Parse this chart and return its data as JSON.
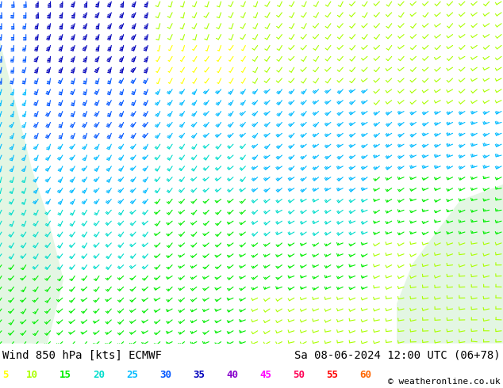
{
  "title_left": "Wind 850 hPa [kts] ECMWF",
  "title_right": "Sa 08-06-2024 12:00 UTC (06+78)",
  "copyright": "© weatheronline.co.uk",
  "legend_values": [
    5,
    10,
    15,
    20,
    25,
    30,
    35,
    40,
    45,
    50,
    55,
    60
  ],
  "legend_colors": [
    "#ffff00",
    "#aaff00",
    "#00ee00",
    "#00ddcc",
    "#00bbff",
    "#0055ff",
    "#0000bb",
    "#8800cc",
    "#ff00ff",
    "#ff0055",
    "#ff0000",
    "#ff6600"
  ],
  "bg_color": "#f0f0f0",
  "label_bg": "#ffffff",
  "font_size_title": 10,
  "font_size_legend": 9,
  "map_bg": "#f0f0f0",
  "land_green": "#d8f0d0",
  "speed_colors": {
    "5": "#ffff00",
    "10": "#aaff00",
    "15": "#00ee00",
    "20": "#00ddcc",
    "25": "#00bbff",
    "30": "#0055ff",
    "35": "#0000bb",
    "40": "#8800cc",
    "45": "#ff00ff",
    "50": "#ff0055",
    "55": "#ff0000",
    "60": "#ff6600"
  }
}
